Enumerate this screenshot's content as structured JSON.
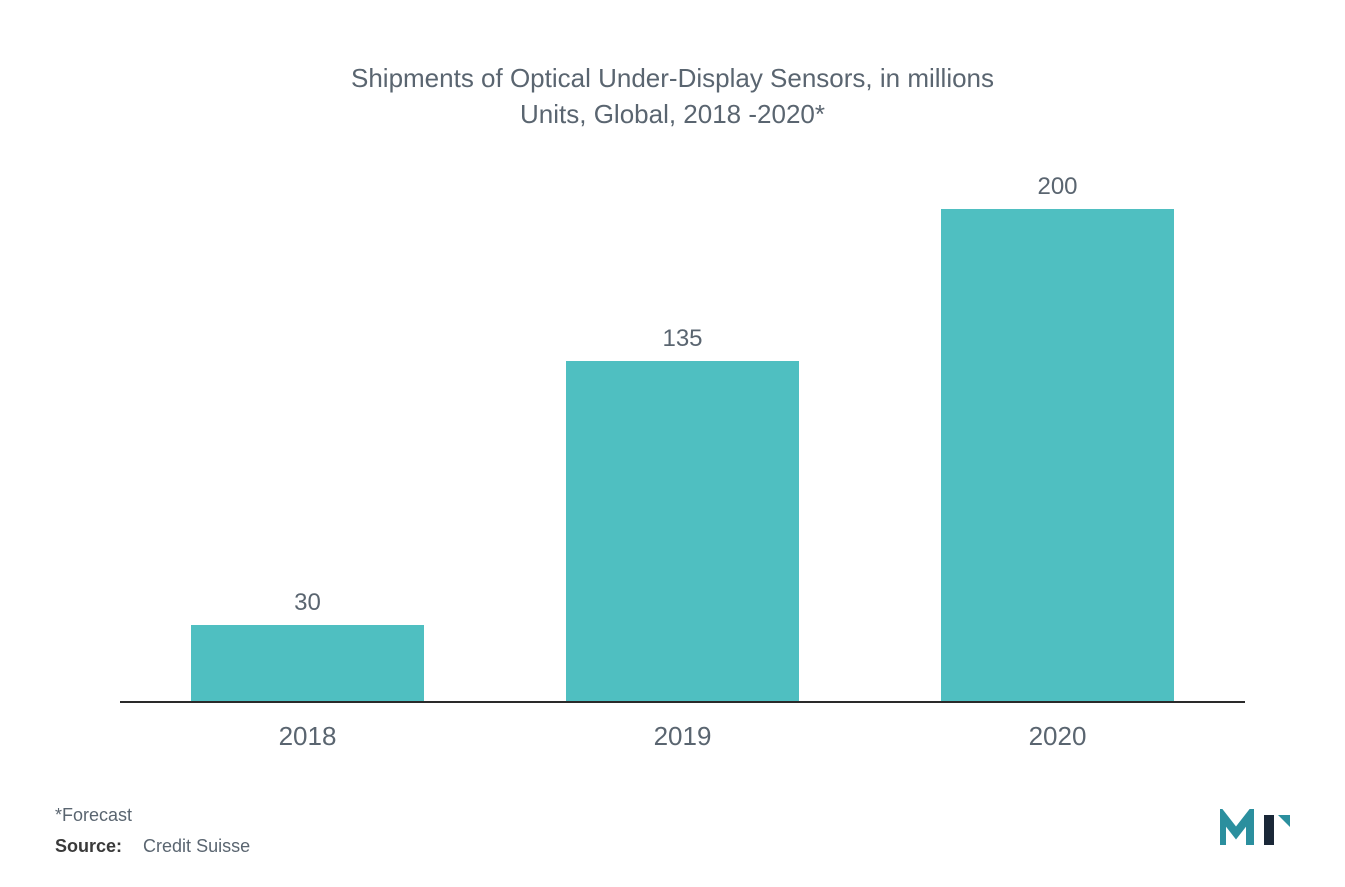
{
  "chart": {
    "type": "bar",
    "title_line1": "Shipments of Optical Under-Display Sensors, in millions",
    "title_line2": "Units, Global, 2018 -2020*",
    "title_fontsize": 26,
    "title_color": "#5a6570",
    "categories": [
      "2018",
      "2019",
      "2020"
    ],
    "values": [
      30,
      135,
      200
    ],
    "display_values": [
      "30",
      "135",
      "200"
    ],
    "ymax": 210,
    "bar_color": "#4fbfc1",
    "bar_width_pct": 62,
    "background_color": "#ffffff",
    "axis_color": "#2a2a2a",
    "label_color": "#5a6570",
    "label_fontsize": 26,
    "value_fontsize": 24
  },
  "footnote": "*Forecast",
  "source": {
    "label": "Source:",
    "value": "Credit Suisse"
  },
  "logo": {
    "name": "mi-logo",
    "primary_color": "#2b8f9e",
    "accent_color": "#1a2838"
  }
}
